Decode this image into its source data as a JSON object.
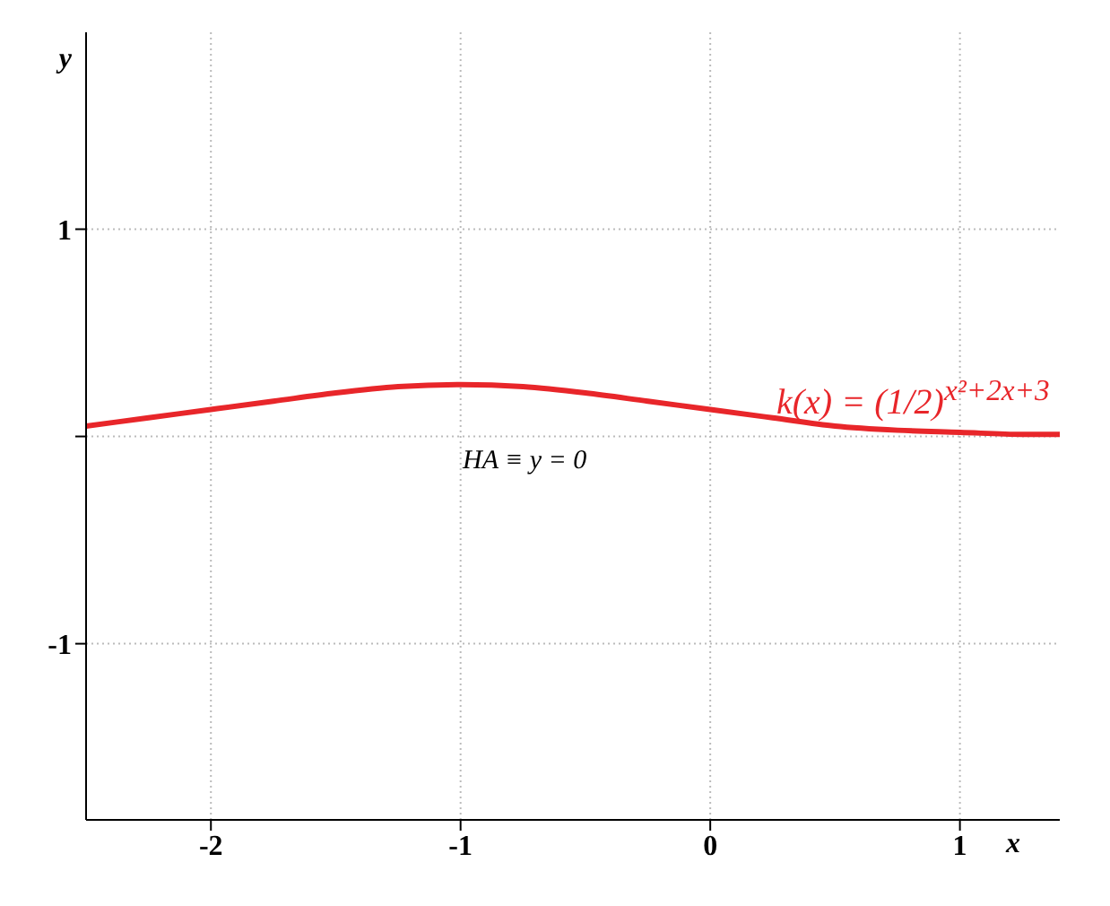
{
  "chart_data": {
    "type": "line",
    "xlabel": "x",
    "ylabel": "y",
    "x": [
      -2.5,
      -2.25,
      -2,
      -1.75,
      -1.5,
      -1.25,
      -1,
      -0.75,
      -0.5,
      -0.25,
      0,
      0.25,
      0.5,
      0.75,
      1,
      1.25,
      1.4
    ],
    "series": [
      {
        "color": "#e8262a",
        "values": [
          0.05,
          0.09,
          0.13,
          0.17,
          0.21,
          0.24,
          0.25,
          0.24,
          0.21,
          0.17,
          0.13,
          0.09,
          0.05,
          0.03,
          0.02,
          0.01,
          0.01
        ]
      }
    ],
    "xlim": [
      -2.5,
      1.4
    ],
    "xticks": [
      -2,
      -1,
      0,
      1
    ],
    "ylim": [
      -1.85,
      1.95
    ],
    "yticks": [
      -1,
      {
        "value": 0,
        "label": null
      },
      1
    ],
    "grid": true,
    "marker": "none",
    "line_style": "solid",
    "annotations": [
      "HA ≡ y = 0",
      "k(x) = (1/2)$^{x²+2x+3}$"
    ]
  }
}
